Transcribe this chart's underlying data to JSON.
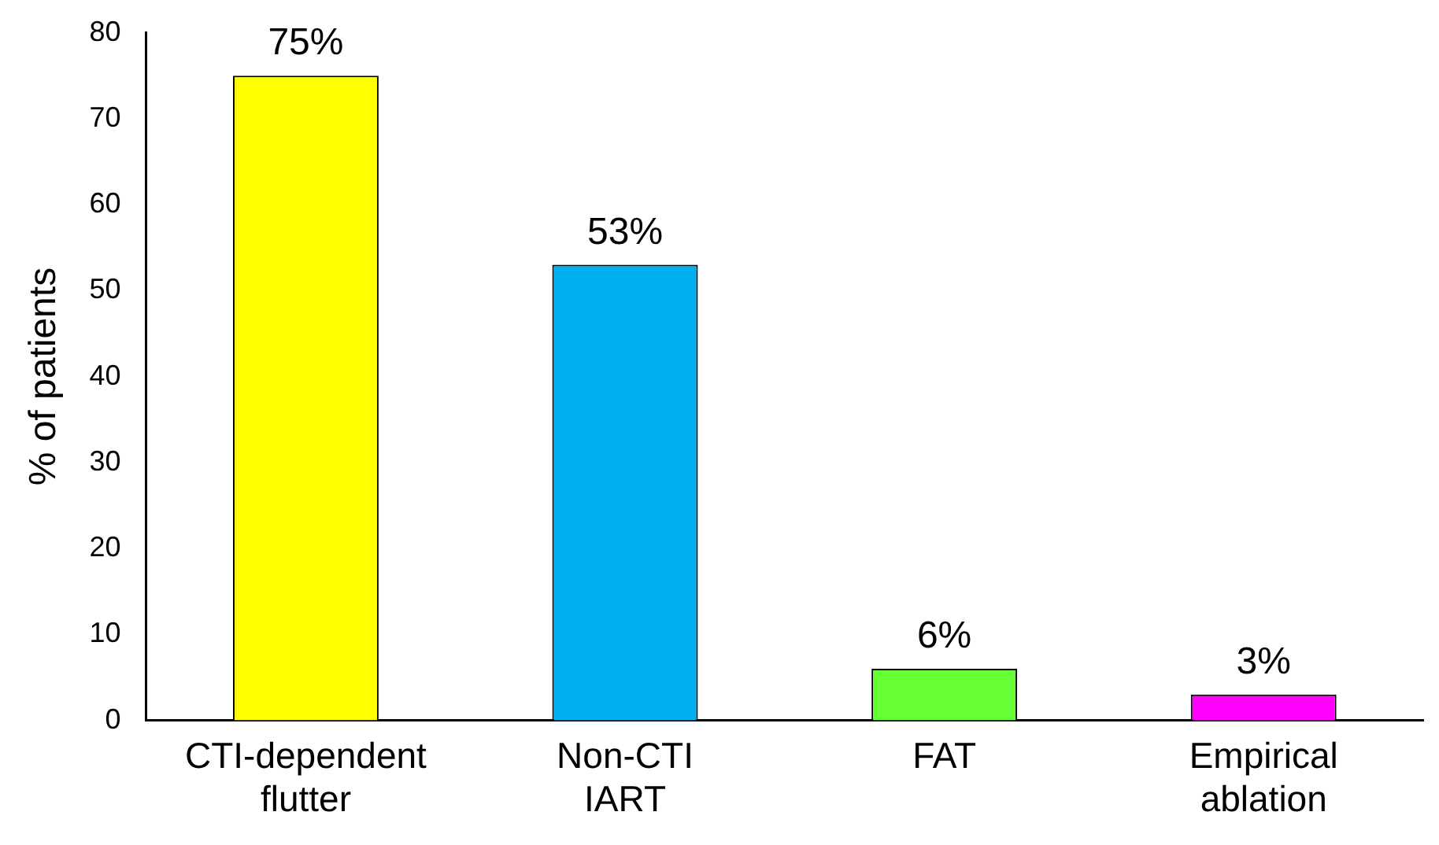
{
  "chart_data": {
    "type": "bar",
    "ylabel": "% of patients",
    "categories": [
      "CTI-dependent flutter",
      "Non-CTI IART",
      "FAT",
      "Empirical ablation"
    ],
    "values": [
      75,
      53,
      6,
      3
    ],
    "colors": [
      "#ffff00",
      "#00b0f0",
      "#66ff33",
      "#ff00ff"
    ],
    "value_labels": [
      "75%",
      "53%",
      "6%",
      "3%"
    ],
    "ylim": [
      0,
      80
    ],
    "yticks": [
      0,
      10,
      20,
      30,
      40,
      50,
      60,
      70,
      80
    ],
    "grid": false,
    "legend": false
  }
}
